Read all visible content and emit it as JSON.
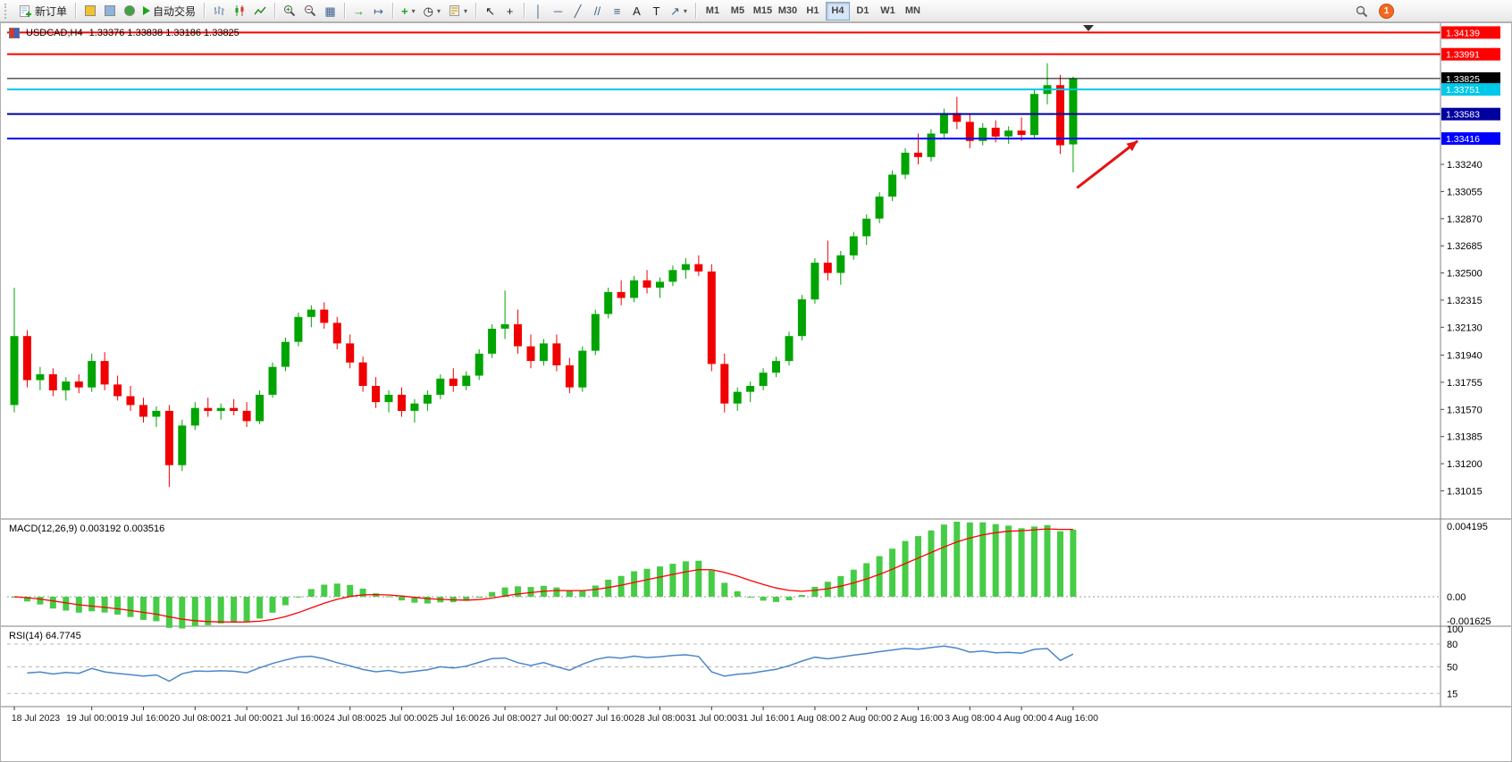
{
  "toolbar": {
    "new_order": "新订单",
    "auto_trading": "自动交易",
    "timeframes": [
      "M1",
      "M5",
      "M15",
      "M30",
      "H1",
      "H4",
      "D1",
      "W1",
      "MN"
    ],
    "active_timeframe": "H4",
    "notification_count": "1",
    "icons": {
      "caret": "▾",
      "tile": "▦",
      "auto_scroll": "→",
      "chart_shift": "↦",
      "indicators": "+",
      "clock": "◷",
      "cursor": "↖",
      "crosshair": "+",
      "vline": "│",
      "hline": "─",
      "trendline": "╱",
      "channel": "//",
      "fibonacci": "≡",
      "text": "A",
      "label": "T",
      "arrows": "↗"
    }
  },
  "chart": {
    "symbol_period": "USDCAD,H4",
    "ohlc_text": "1.33376 1.33838 1.33186 1.33825"
  },
  "chart_data": {
    "type": "candlestick",
    "symbol": "USDCAD",
    "timeframe": "H4",
    "last_ohlc": {
      "open": 1.33376,
      "high": 1.33838,
      "low": 1.33186,
      "close": 1.33825
    },
    "colors": {
      "bull": "#00a400",
      "bear": "#f00000",
      "macd_bar": "#46cc46",
      "macd_signal": "#ff0000",
      "rsi_line": "#4a86c8"
    },
    "price_range": {
      "top": 1.34196,
      "bottom": 1.30829
    },
    "candles": [
      [
        1.316,
        1.324,
        1.3155,
        1.3207
      ],
      [
        1.3207,
        1.3211,
        1.3172,
        1.3177
      ],
      [
        1.3177,
        1.3186,
        1.317,
        1.3181
      ],
      [
        1.3181,
        1.3185,
        1.3166,
        1.317
      ],
      [
        1.317,
        1.3179,
        1.3163,
        1.3176
      ],
      [
        1.3176,
        1.3181,
        1.3168,
        1.3172
      ],
      [
        1.3172,
        1.3195,
        1.3169,
        1.319
      ],
      [
        1.319,
        1.3196,
        1.317,
        1.3174
      ],
      [
        1.3174,
        1.318,
        1.3163,
        1.3166
      ],
      [
        1.3166,
        1.3173,
        1.3156,
        1.316
      ],
      [
        1.316,
        1.3165,
        1.3148,
        1.3152
      ],
      [
        1.3152,
        1.3159,
        1.3145,
        1.3156
      ],
      [
        1.3156,
        1.316,
        1.3104,
        1.3119
      ],
      [
        1.3119,
        1.315,
        1.3115,
        1.3146
      ],
      [
        1.3146,
        1.3162,
        1.3143,
        1.3158
      ],
      [
        1.3158,
        1.3165,
        1.3152,
        1.3156
      ],
      [
        1.3156,
        1.3161,
        1.315,
        1.3158
      ],
      [
        1.3158,
        1.3164,
        1.3153,
        1.3156
      ],
      [
        1.3156,
        1.3162,
        1.3145,
        1.3149
      ],
      [
        1.3149,
        1.317,
        1.3147,
        1.3167
      ],
      [
        1.3167,
        1.3189,
        1.3165,
        1.3186
      ],
      [
        1.3186,
        1.3206,
        1.3183,
        1.3203
      ],
      [
        1.3203,
        1.3223,
        1.32,
        1.322
      ],
      [
        1.322,
        1.3228,
        1.3213,
        1.3225
      ],
      [
        1.3225,
        1.323,
        1.3212,
        1.3216
      ],
      [
        1.3216,
        1.322,
        1.3198,
        1.3202
      ],
      [
        1.3202,
        1.3208,
        1.3185,
        1.3189
      ],
      [
        1.3189,
        1.3193,
        1.3169,
        1.3173
      ],
      [
        1.3173,
        1.3179,
        1.3158,
        1.3162
      ],
      [
        1.3162,
        1.317,
        1.3155,
        1.3167
      ],
      [
        1.3167,
        1.3172,
        1.3152,
        1.3156
      ],
      [
        1.3156,
        1.3164,
        1.3148,
        1.3161
      ],
      [
        1.3161,
        1.317,
        1.3156,
        1.3167
      ],
      [
        1.3167,
        1.3181,
        1.3164,
        1.3178
      ],
      [
        1.3178,
        1.3185,
        1.3169,
        1.3173
      ],
      [
        1.3173,
        1.3183,
        1.317,
        1.318
      ],
      [
        1.318,
        1.3198,
        1.3177,
        1.3195
      ],
      [
        1.3195,
        1.3215,
        1.3192,
        1.3212
      ],
      [
        1.3212,
        1.3238,
        1.3205,
        1.3215
      ],
      [
        1.3215,
        1.3225,
        1.3195,
        1.32
      ],
      [
        1.32,
        1.3208,
        1.3185,
        1.319
      ],
      [
        1.319,
        1.3205,
        1.3187,
        1.3202
      ],
      [
        1.3202,
        1.3208,
        1.3183,
        1.3187
      ],
      [
        1.3187,
        1.3192,
        1.3168,
        1.3172
      ],
      [
        1.3172,
        1.32,
        1.3169,
        1.3197
      ],
      [
        1.3197,
        1.3225,
        1.3194,
        1.3222
      ],
      [
        1.3222,
        1.324,
        1.3219,
        1.3237
      ],
      [
        1.3237,
        1.3245,
        1.3228,
        1.3233
      ],
      [
        1.3233,
        1.3248,
        1.323,
        1.3245
      ],
      [
        1.3245,
        1.3252,
        1.3236,
        1.324
      ],
      [
        1.324,
        1.3247,
        1.3233,
        1.3244
      ],
      [
        1.3244,
        1.3255,
        1.3241,
        1.3252
      ],
      [
        1.3252,
        1.326,
        1.3246,
        1.3256
      ],
      [
        1.3256,
        1.3262,
        1.3248,
        1.3251
      ],
      [
        1.3251,
        1.3256,
        1.3183,
        1.3188
      ],
      [
        1.3188,
        1.3195,
        1.3155,
        1.3161
      ],
      [
        1.3161,
        1.3172,
        1.3156,
        1.3169
      ],
      [
        1.3169,
        1.3176,
        1.3162,
        1.3173
      ],
      [
        1.3173,
        1.3185,
        1.317,
        1.3182
      ],
      [
        1.3182,
        1.3193,
        1.3179,
        1.319
      ],
      [
        1.319,
        1.321,
        1.3187,
        1.3207
      ],
      [
        1.3207,
        1.3235,
        1.3204,
        1.3232
      ],
      [
        1.3232,
        1.326,
        1.3229,
        1.3257
      ],
      [
        1.3257,
        1.3272,
        1.3245,
        1.325
      ],
      [
        1.325,
        1.3265,
        1.3242,
        1.3262
      ],
      [
        1.3262,
        1.3278,
        1.3259,
        1.3275
      ],
      [
        1.3275,
        1.329,
        1.3269,
        1.3287
      ],
      [
        1.3287,
        1.3305,
        1.3284,
        1.3302
      ],
      [
        1.3302,
        1.332,
        1.3299,
        1.3317
      ],
      [
        1.3317,
        1.3335,
        1.3314,
        1.3332
      ],
      [
        1.3332,
        1.3345,
        1.3324,
        1.3329
      ],
      [
        1.3329,
        1.3348,
        1.3326,
        1.3345
      ],
      [
        1.3345,
        1.3362,
        1.3342,
        1.3359
      ],
      [
        1.3359,
        1.337,
        1.3348,
        1.3353
      ],
      [
        1.3353,
        1.3358,
        1.3335,
        1.334
      ],
      [
        1.334,
        1.3352,
        1.3337,
        1.3349
      ],
      [
        1.3349,
        1.3354,
        1.3339,
        1.3343
      ],
      [
        1.3343,
        1.335,
        1.3338,
        1.3347
      ],
      [
        1.3347,
        1.3356,
        1.334,
        1.3344
      ],
      [
        1.3344,
        1.3375,
        1.3341,
        1.3372
      ],
      [
        1.3372,
        1.3393,
        1.3365,
        1.3378
      ],
      [
        1.3378,
        1.3385,
        1.3331,
        1.3337
      ],
      [
        1.33376,
        1.33838,
        1.33186,
        1.33825
      ]
    ],
    "time_labels": [
      {
        "i": 0,
        "t": "18 Jul 2023"
      },
      {
        "i": 6,
        "t": "19 Jul 00:00"
      },
      {
        "i": 10,
        "t": "19 Jul 16:00"
      },
      {
        "i": 14,
        "t": "20 Jul 08:00"
      },
      {
        "i": 18,
        "t": "21 Jul 00:00"
      },
      {
        "i": 22,
        "t": "21 Jul 16:00"
      },
      {
        "i": 26,
        "t": "24 Jul 08:00"
      },
      {
        "i": 30,
        "t": "25 Jul 00:00"
      },
      {
        "i": 34,
        "t": "25 Jul 16:00"
      },
      {
        "i": 38,
        "t": "26 Jul 08:00"
      },
      {
        "i": 42,
        "t": "27 Jul 00:00"
      },
      {
        "i": 46,
        "t": "27 Jul 16:00"
      },
      {
        "i": 50,
        "t": "28 Jul 08:00"
      },
      {
        "i": 54,
        "t": "31 Jul 00:00"
      },
      {
        "i": 58,
        "t": "31 Jul 16:00"
      },
      {
        "i": 62,
        "t": "1 Aug 08:00"
      },
      {
        "i": 66,
        "t": "2 Aug 00:00"
      },
      {
        "i": 70,
        "t": "2 Aug 16:00"
      },
      {
        "i": 74,
        "t": "3 Aug 08:00"
      },
      {
        "i": 78,
        "t": "4 Aug 00:00"
      },
      {
        "i": 82,
        "t": "4 Aug 16:00"
      }
    ],
    "price_axis_labels": [
      "1.33240",
      "1.33055",
      "1.32870",
      "1.32685",
      "1.32500",
      "1.32315",
      "1.32130",
      "1.31940",
      "1.31755",
      "1.31570",
      "1.31385",
      "1.31200",
      "1.31015"
    ],
    "h_lines": [
      {
        "price": 1.34139,
        "label": "1.34139",
        "color": "#ff0000",
        "width": 2
      },
      {
        "price": 1.33991,
        "label": "1.33991",
        "color": "#ff0000",
        "width": 2
      },
      {
        "price": 1.33825,
        "label": "1.33825",
        "color": "#000000",
        "width": 1
      },
      {
        "price": 1.33751,
        "label": "1.33751",
        "color": "#00c8e8",
        "width": 2
      },
      {
        "price": 1.33583,
        "label": "1.33583",
        "color": "#0000a0",
        "width": 2
      },
      {
        "price": 1.33416,
        "label": "1.33416",
        "color": "#0000ff",
        "width": 2
      }
    ],
    "macd": {
      "header": "MACD(12,26,9) 0.003192 0.003516",
      "main": 0.003192,
      "signal": 0.003516,
      "axis_max": "0.004195",
      "axis_zero": "0.00",
      "axis_min": "-0.001625"
    },
    "rsi": {
      "header": "RSI(14) 64.7745",
      "value": 64.7745,
      "axis_labels": [
        "100",
        "80",
        "50",
        "15"
      ],
      "levels": [
        80,
        50,
        15
      ]
    },
    "arrow": {
      "color": "#e61212",
      "from_i": 82.3,
      "from_price": 1.3308,
      "to_i": 87.0,
      "to_price": 1.334
    }
  }
}
